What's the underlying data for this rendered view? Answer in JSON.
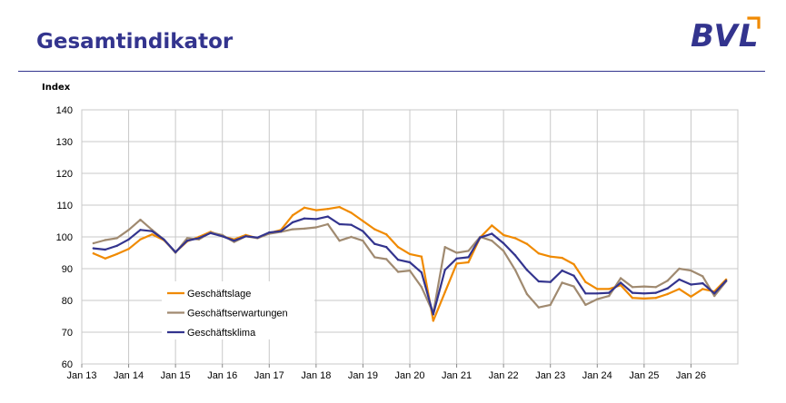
{
  "header": {
    "title": "Gesamtindikator",
    "logo": "BVL"
  },
  "colors": {
    "brand": "#33348e",
    "accent": "#f08a00"
  },
  "chart_data": {
    "type": "line",
    "title": "Gesamtindikator",
    "xlabel": "",
    "ylabel": "Index",
    "ylim": [
      60,
      140
    ],
    "xlim": [
      2013,
      2027
    ],
    "yticks": [
      60,
      70,
      80,
      90,
      100,
      110,
      120,
      130,
      140
    ],
    "xticks": [
      {
        "v": 2013,
        "label": "Jan 13"
      },
      {
        "v": 2014,
        "label": "Jan 14"
      },
      {
        "v": 2015,
        "label": "Jan 15"
      },
      {
        "v": 2016,
        "label": "Jan 16"
      },
      {
        "v": 2017,
        "label": "Jan 17"
      },
      {
        "v": 2018,
        "label": "Jan 18"
      },
      {
        "v": 2019,
        "label": "Jan 19"
      },
      {
        "v": 2020,
        "label": "Jan 20"
      },
      {
        "v": 2021,
        "label": "Jan 21"
      },
      {
        "v": 2022,
        "label": "Jan 22"
      },
      {
        "v": 2023,
        "label": "Jan 23"
      },
      {
        "v": 2024,
        "label": "Jan 24"
      },
      {
        "v": 2025,
        "label": "Jan 25"
      },
      {
        "v": 2026,
        "label": "Jan 26"
      }
    ],
    "grid": true,
    "legend_position": "bottom-left",
    "x": [
      2013.25,
      2013.5,
      2013.75,
      2014.0,
      2014.25,
      2014.5,
      2014.75,
      2015.0,
      2015.25,
      2015.5,
      2015.75,
      2016.0,
      2016.25,
      2016.5,
      2016.75,
      2017.0,
      2017.25,
      2017.5,
      2017.75,
      2018.0,
      2018.25,
      2018.5,
      2018.75,
      2019.0,
      2019.25,
      2019.5,
      2019.75,
      2020.0,
      2020.25,
      2020.5,
      2020.75,
      2021.0,
      2021.25,
      2021.5,
      2021.75,
      2022.0,
      2022.25,
      2022.5,
      2022.75,
      2023.0,
      2023.25,
      2023.5,
      2023.75,
      2024.0,
      2024.25,
      2024.5,
      2024.75,
      2025.0,
      2025.25,
      2025.5,
      2025.75,
      2026.0,
      2026.25,
      2026.5,
      2026.75
    ],
    "series": [
      {
        "name": "Geschäftslage",
        "color": "#f08a00",
        "values": [
          94.8,
          93.2,
          94.6,
          96.2,
          99.2,
          100.8,
          99.0,
          95.2,
          98.6,
          100.0,
          101.6,
          100.2,
          99.2,
          100.6,
          99.6,
          101.2,
          102.2,
          106.8,
          109.2,
          108.4,
          108.8,
          109.4,
          107.6,
          105.0,
          102.4,
          100.8,
          96.8,
          94.6,
          93.8,
          73.6,
          82.6,
          91.6,
          92.0,
          99.8,
          103.6,
          100.6,
          99.6,
          97.8,
          94.8,
          93.8,
          93.4,
          91.4,
          85.8,
          83.6,
          83.6,
          84.8,
          80.8,
          80.6,
          80.8,
          82.0,
          83.6,
          81.2,
          83.6,
          82.8,
          86.6
        ]
      },
      {
        "name": "Geschäftserwartungen",
        "color": "#a08a70",
        "values": [
          98.0,
          99.0,
          99.6,
          102.2,
          105.4,
          102.2,
          99.2,
          95.0,
          99.6,
          99.2,
          101.4,
          100.6,
          98.4,
          100.2,
          99.6,
          101.0,
          101.6,
          102.4,
          102.6,
          103.0,
          104.0,
          98.8,
          100.0,
          98.8,
          93.6,
          93.0,
          89.0,
          89.4,
          84.2,
          76.0,
          96.8,
          95.0,
          95.6,
          100.0,
          98.8,
          95.6,
          89.6,
          82.0,
          77.8,
          78.6,
          85.6,
          84.4,
          78.6,
          80.4,
          81.4,
          87.0,
          84.2,
          84.4,
          84.2,
          86.2,
          90.0,
          89.4,
          87.6,
          81.4,
          86.0
        ]
      },
      {
        "name": "Geschäftsklima",
        "color": "#33348e",
        "values": [
          96.4,
          96.0,
          97.2,
          99.2,
          102.2,
          101.8,
          99.2,
          95.2,
          98.8,
          99.6,
          101.2,
          100.2,
          98.8,
          100.2,
          99.8,
          101.4,
          101.8,
          104.6,
          105.8,
          105.6,
          106.4,
          104.0,
          103.8,
          101.8,
          97.8,
          96.8,
          92.8,
          92.0,
          88.8,
          75.6,
          89.6,
          93.2,
          93.6,
          99.8,
          101.0,
          98.0,
          94.2,
          89.6,
          86.0,
          85.8,
          89.4,
          87.8,
          82.2,
          82.2,
          82.4,
          85.6,
          82.4,
          82.2,
          82.4,
          83.8,
          86.6,
          85.0,
          85.4,
          82.2,
          86.2
        ]
      }
    ]
  }
}
